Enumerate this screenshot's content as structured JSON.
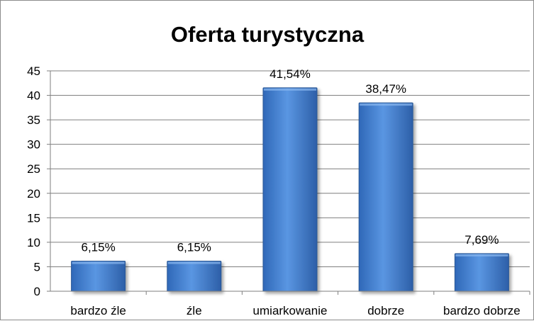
{
  "chart_data": {
    "type": "bar",
    "title": "Oferta turystyczna",
    "categories": [
      "bardzo źle",
      "źle",
      "umiarkowanie",
      "dobrze",
      "bardzo dobrze"
    ],
    "values": [
      6.15,
      6.15,
      41.54,
      38.47,
      7.69
    ],
    "data_labels": [
      "6,15%",
      "6,15%",
      "41,54%",
      "38,47%",
      "7,69%"
    ],
    "ylim": [
      0,
      45
    ],
    "yticks": [
      "0",
      "5",
      "10",
      "15",
      "20",
      "25",
      "30",
      "35",
      "40",
      "45"
    ],
    "grid": true,
    "legend": "none",
    "bar_color": "#4a86d6"
  }
}
